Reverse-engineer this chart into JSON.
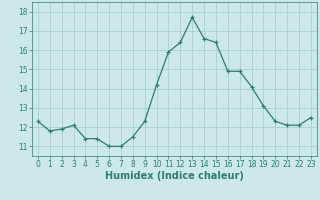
{
  "x": [
    0,
    1,
    2,
    3,
    4,
    5,
    6,
    7,
    8,
    9,
    10,
    11,
    12,
    13,
    14,
    15,
    16,
    17,
    18,
    19,
    20,
    21,
    22,
    23
  ],
  "y": [
    12.3,
    11.8,
    11.9,
    12.1,
    11.4,
    11.4,
    11.0,
    11.0,
    11.5,
    12.3,
    14.2,
    15.9,
    16.4,
    17.7,
    16.6,
    16.4,
    14.9,
    14.9,
    14.1,
    13.1,
    12.3,
    12.1,
    12.1,
    12.5
  ],
  "xlabel": "Humidex (Indice chaleur)",
  "line_color": "#2e7d6e",
  "marker": "+",
  "bg_color": "#cce8e8",
  "grid_color": "#aad0d0",
  "tick_color": "#2e7d6e",
  "label_color": "#2e7d6e",
  "xlim": [
    -0.5,
    23.5
  ],
  "ylim": [
    10.5,
    18.5
  ],
  "yticks": [
    11,
    12,
    13,
    14,
    15,
    16,
    17,
    18
  ],
  "xticks": [
    0,
    1,
    2,
    3,
    4,
    5,
    6,
    7,
    8,
    9,
    10,
    11,
    12,
    13,
    14,
    15,
    16,
    17,
    18,
    19,
    20,
    21,
    22,
    23
  ],
  "tick_fontsize": 5.5,
  "xlabel_fontsize": 7.0
}
